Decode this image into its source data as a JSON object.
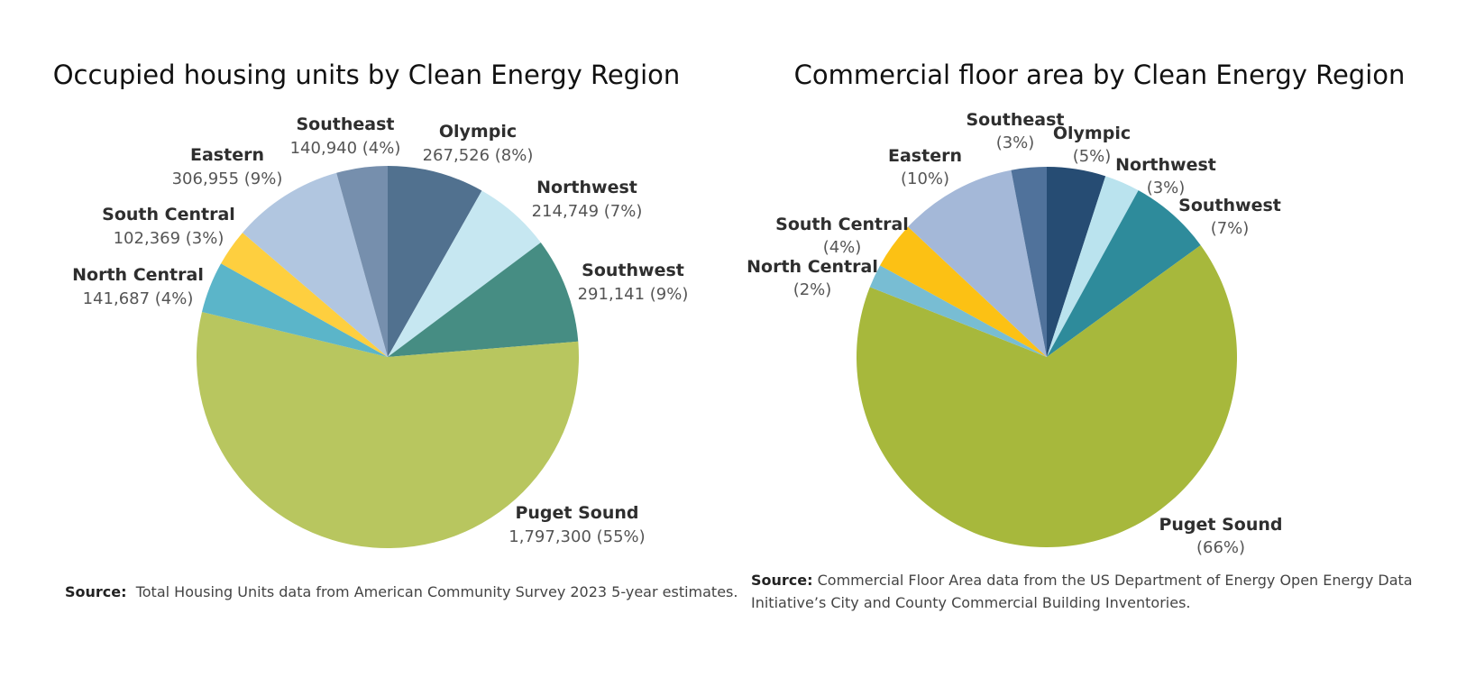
{
  "chart_data": [
    {
      "type": "pie",
      "title": "Occupied housing units by Clean Energy Region",
      "slices": [
        {
          "name": "Olympic",
          "value": 267526,
          "label": "267,526 (8%)",
          "color": "#51718f"
        },
        {
          "name": "Northwest",
          "value": 214749,
          "label": "214,749 (7%)",
          "color": "#c6e7f1"
        },
        {
          "name": "Southwest",
          "value": 291141,
          "label": "291,141 (9%)",
          "color": "#468d83"
        },
        {
          "name": "Puget Sound",
          "value": 1797300,
          "label": "1,797,300 (55%)",
          "color": "#b8c65f"
        },
        {
          "name": "North Central",
          "value": 141687,
          "label": "141,687 (4%)",
          "color": "#5bb5c9"
        },
        {
          "name": "South Central",
          "value": 102369,
          "label": "102,369 (3%)",
          "color": "#fecf3f"
        },
        {
          "name": "Eastern",
          "value": 306955,
          "label": "306,955 (9%)",
          "color": "#b1c6e0"
        },
        {
          "name": "Southeast",
          "value": 140940,
          "label": "140,940 (4%)",
          "color": "#768fad"
        }
      ],
      "source_label": "Source:",
      "source_text": "Total Housing Units data from American Community Survey 2023 5-year estimates."
    },
    {
      "type": "pie",
      "title": "Commercial floor area by Clean Energy Region",
      "slices": [
        {
          "name": "Olympic",
          "value": 5,
          "label": "(5%)",
          "color": "#264c73"
        },
        {
          "name": "Northwest",
          "value": 3,
          "label": "(3%)",
          "color": "#bae3ee"
        },
        {
          "name": "Southwest",
          "value": 7,
          "label": "(7%)",
          "color": "#2e8b9b"
        },
        {
          "name": "Puget Sound",
          "value": 66,
          "label": "(66%)",
          "color": "#a7b83c"
        },
        {
          "name": "North Central",
          "value": 2,
          "label": "(2%)",
          "color": "#78bdd3"
        },
        {
          "name": "South Central",
          "value": 4,
          "label": "(4%)",
          "color": "#fcc114"
        },
        {
          "name": "Eastern",
          "value": 10,
          "label": "(10%)",
          "color": "#a4b8d8"
        },
        {
          "name": "Southeast",
          "value": 3,
          "label": "(3%)",
          "color": "#50729b"
        }
      ],
      "source_label": "Source:",
      "source_text": "Commercial Floor Area data from the US Department of Energy Open Energy Data Initiative’s City and County Commercial Building Inventories."
    }
  ]
}
